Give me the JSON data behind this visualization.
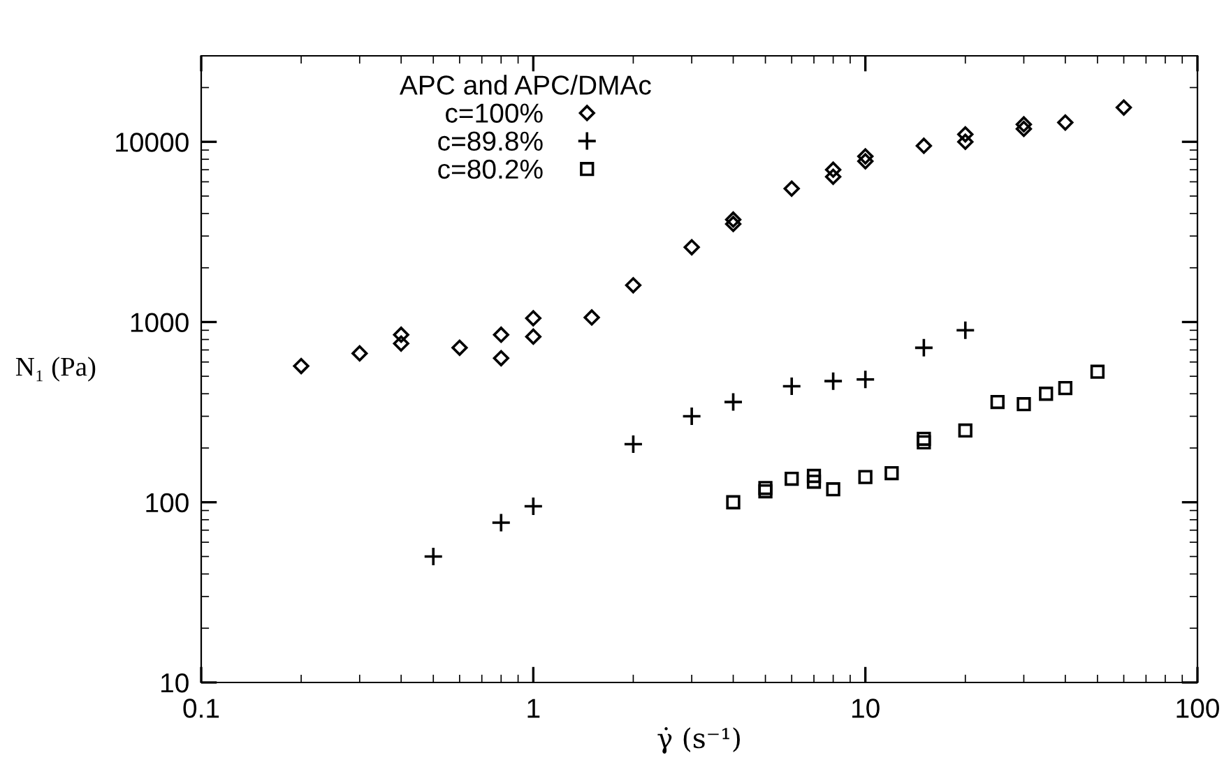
{
  "chart_data": {
    "type": "scatter",
    "xlabel": "γ̇ (s⁻¹)",
    "ylabel": "N₁ (Pa)",
    "legend_title": "APC and APC/DMAc",
    "log": "xy",
    "grid": false,
    "legend": "top left",
    "xlim": [
      0.1,
      100
    ],
    "xticks": [
      0.1,
      1,
      10,
      100
    ],
    "ylim": [
      10,
      30000
    ],
    "yticks": [
      10,
      100,
      1000,
      10000
    ],
    "series": [
      {
        "name": "c=100%",
        "color": "#000000",
        "marker": "diamond",
        "x": [
          0.2,
          0.3,
          0.4,
          0.4,
          0.6,
          0.8,
          0.8,
          1,
          1,
          1.5,
          2,
          3,
          4,
          4,
          6,
          8,
          8,
          10,
          10,
          15,
          20,
          20,
          30,
          30,
          40,
          60
        ],
        "values": [
          570,
          670,
          850,
          760,
          720,
          850,
          630,
          1050,
          830,
          1060,
          1600,
          2600,
          3700,
          3500,
          5500,
          7000,
          6400,
          8300,
          7800,
          9500,
          11000,
          10000,
          12500,
          11800,
          12800,
          15500
        ]
      },
      {
        "name": "c=89.8%",
        "color": "#000000",
        "marker": "cross",
        "x": [
          0.5,
          0.8,
          1,
          2,
          3,
          4,
          6,
          8,
          10,
          15,
          20
        ],
        "values": [
          50,
          77,
          95,
          210,
          300,
          360,
          440,
          470,
          480,
          720,
          900
        ]
      },
      {
        "name": "c=80.2%",
        "color": "#000000",
        "marker": "square",
        "x": [
          4,
          5,
          5,
          6,
          7,
          7,
          8,
          10,
          12,
          15,
          15,
          20,
          25,
          30,
          35,
          40,
          50
        ],
        "values": [
          100,
          115,
          120,
          135,
          140,
          130,
          118,
          138,
          145,
          225,
          215,
          250,
          360,
          350,
          400,
          430,
          530
        ]
      }
    ]
  }
}
